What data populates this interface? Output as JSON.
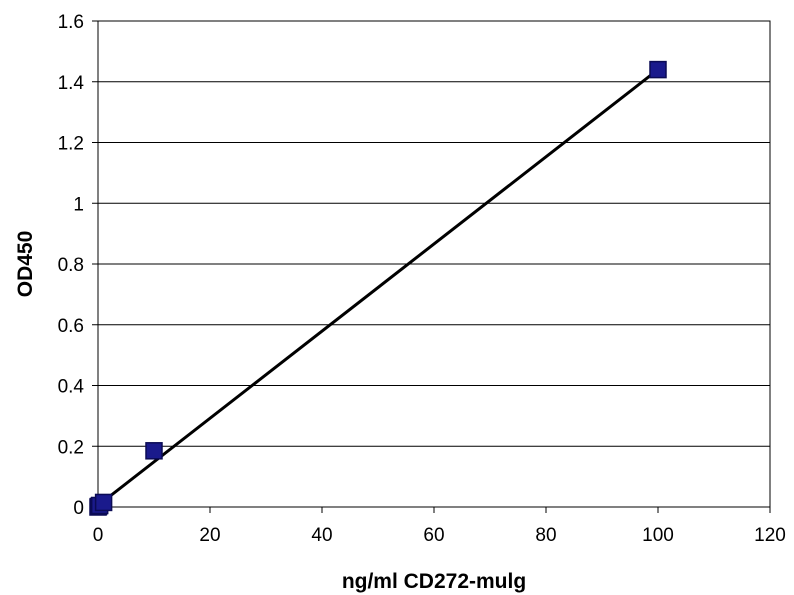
{
  "chart_data": {
    "type": "scatter",
    "title": "",
    "xlabel": "ng/ml CD272-mulg",
    "ylabel": "OD450",
    "xlim": [
      0,
      120
    ],
    "ylim": [
      0,
      1.6
    ],
    "x_ticks": [
      "0",
      "20",
      "40",
      "60",
      "80",
      "100",
      "120"
    ],
    "y_ticks": [
      "0",
      "0.2",
      "0.4",
      "0.6",
      "0.8",
      "1",
      "1.2",
      "1.4",
      "1.6"
    ],
    "grid": "horizontal",
    "legend": "none",
    "series": [
      {
        "x": [
          0,
          0.1,
          0.3,
          1,
          10,
          100
        ],
        "y": [
          0,
          0.002,
          0.005,
          0.015,
          0.185,
          1.44
        ],
        "marker": "square",
        "color": "#1a1a8c"
      }
    ],
    "trendline": {
      "type": "linear",
      "from": [
        0,
        0.005
      ],
      "to": [
        100,
        1.44
      ],
      "color": "#000000"
    }
  }
}
